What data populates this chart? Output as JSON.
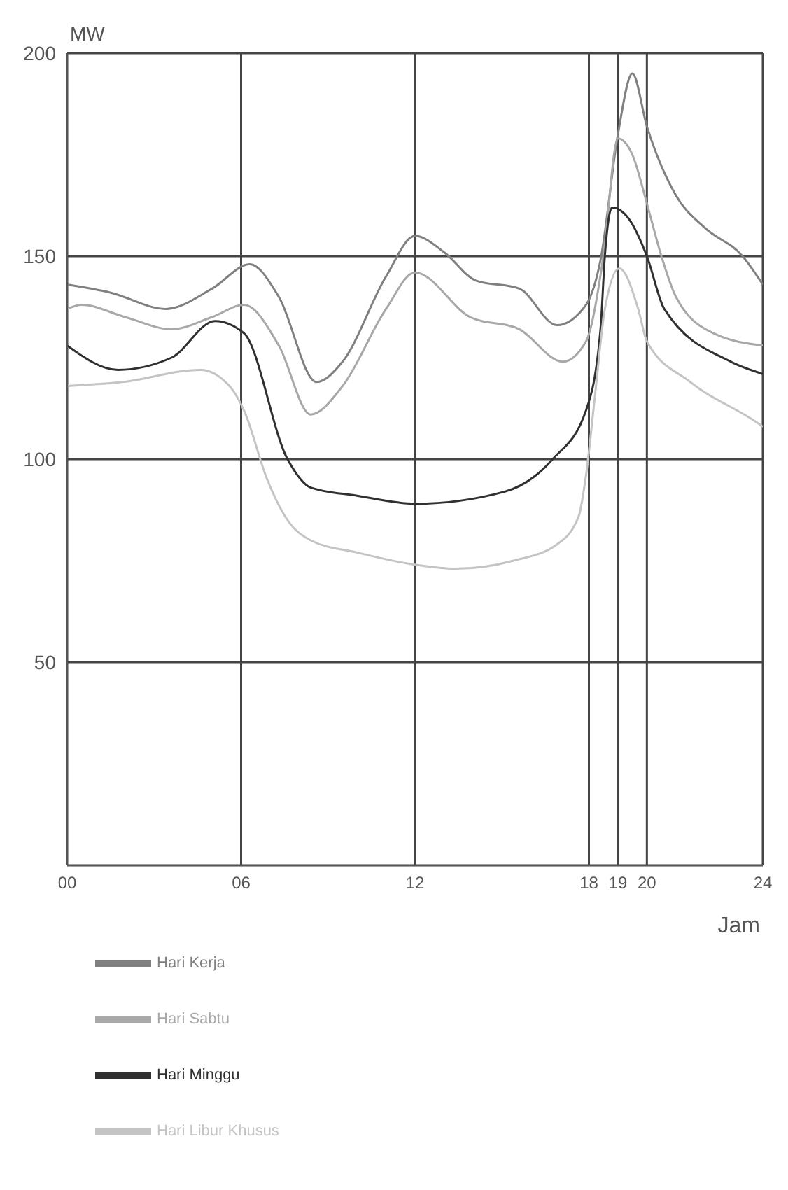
{
  "chart_data": {
    "type": "line",
    "xlabel": "Jam",
    "ylabel": "MW",
    "xlim": [
      0,
      24
    ],
    "xticks": [
      {
        "value": 0,
        "label": "00"
      },
      {
        "value": 6,
        "label": "06"
      },
      12,
      18,
      19,
      20,
      24
    ],
    "ylim": [
      0,
      200
    ],
    "yticks": [
      50,
      100,
      150,
      200
    ],
    "grid": true,
    "legend": "bottom",
    "marker": "none",
    "line_style": "solid",
    "series": [
      {
        "name": "Hari Kerja",
        "color": "#808080",
        "x": [
          0,
          1.5,
          3.4,
          5,
          6.3,
          7.3,
          8.6,
          9.5,
          11,
          12,
          13,
          14.1,
          15.6,
          16.9,
          17.9,
          18.4,
          19,
          19.5,
          20,
          21,
          22,
          23.3,
          24
        ],
        "values": [
          143,
          141,
          137,
          142,
          148,
          140,
          119,
          124,
          145,
          155,
          151,
          144,
          142,
          133,
          138,
          149,
          180,
          195,
          182,
          165,
          157,
          150,
          143
        ]
      },
      {
        "name": "Hari Sabtu",
        "color": "#a8a8a8",
        "x": [
          0,
          0.5,
          2,
          3.6,
          5,
          6.1,
          7.3,
          8.4,
          9.5,
          11,
          12,
          13.9,
          15.6,
          17.1,
          17.9,
          18.5,
          19,
          19.5,
          20,
          20.5,
          21,
          22.3,
          24
        ],
        "values": [
          137,
          138,
          135,
          132,
          135,
          138,
          128,
          111,
          118,
          137,
          146,
          135,
          132,
          124,
          129,
          150,
          179,
          175,
          163,
          150,
          140,
          131,
          128
        ]
      },
      {
        "name": "Hari Minggu",
        "color": "#303030",
        "x": [
          0,
          1.75,
          3.6,
          5.1,
          6.1,
          7.6,
          8.4,
          10,
          12,
          15.1,
          16.75,
          17.9,
          18.4,
          18.55,
          18.8,
          19.4,
          20,
          20.6,
          22.9,
          24
        ],
        "values": [
          128,
          122,
          125,
          134,
          131,
          100,
          93,
          91,
          89,
          92,
          100,
          112,
          132,
          150,
          162,
          159,
          150,
          137,
          124,
          121
        ]
      },
      {
        "name": "Hari Libur Khusus",
        "color": "#c4c4c4",
        "x": [
          0,
          1.9,
          4.6,
          5.6,
          6.1,
          6.9,
          7.6,
          8.4,
          10,
          12,
          13.4,
          15.4,
          16.9,
          17.65,
          17.9,
          18.2,
          18.55,
          19.05,
          19.7,
          20,
          21.5,
          23.8,
          24
        ],
        "values": [
          118,
          119,
          122,
          118,
          112,
          95,
          85,
          80,
          77,
          74,
          73,
          75,
          79,
          86,
          96,
          115,
          137,
          147,
          137,
          129,
          119,
          109,
          108
        ]
      }
    ]
  }
}
